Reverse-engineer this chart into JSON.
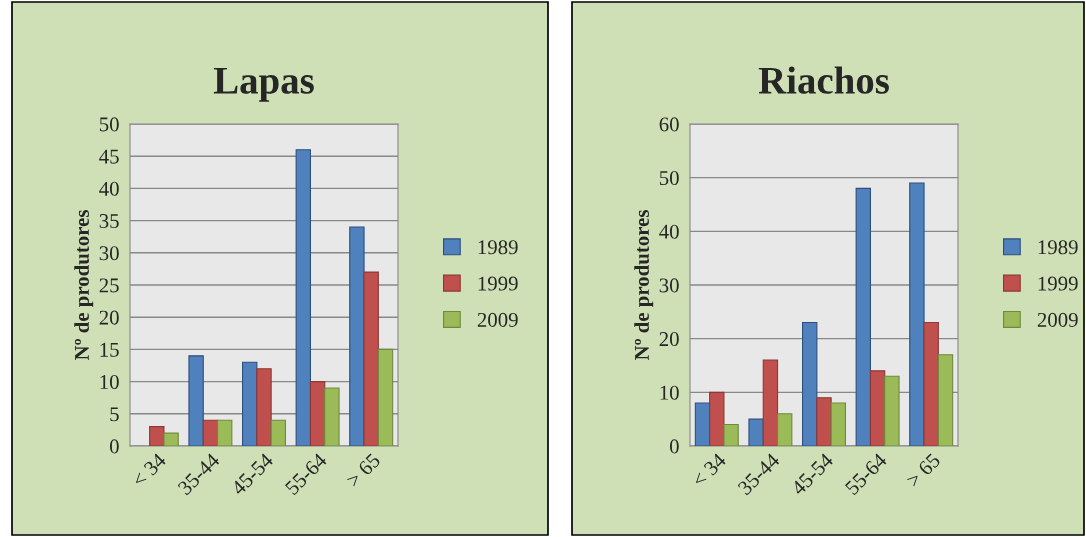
{
  "chart_data": [
    {
      "type": "bar",
      "title": "Lapas",
      "ylabel": "Nº de produtores",
      "categories": [
        "< 34",
        "35-44",
        "45-54",
        "55-64",
        "> 65"
      ],
      "series": [
        {
          "name": "1989",
          "color": "#4f81bd",
          "values": [
            null,
            14,
            13,
            46,
            34
          ]
        },
        {
          "name": "1999",
          "color": "#c0504d",
          "values": [
            3,
            4,
            12,
            10,
            27
          ]
        },
        {
          "name": "2009",
          "color": "#9bbb59",
          "values": [
            2,
            4,
            4,
            9,
            15
          ]
        }
      ],
      "ylim": [
        0,
        50
      ],
      "yticks": [
        0,
        5,
        10,
        15,
        20,
        25,
        30,
        35,
        40,
        45,
        50
      ],
      "grid": "y",
      "legend": "right"
    },
    {
      "type": "bar",
      "title": "Riachos",
      "ylabel": "Nº de produtores",
      "categories": [
        "< 34",
        "35-44",
        "45-54",
        "55-64",
        "> 65"
      ],
      "series": [
        {
          "name": "1989",
          "color": "#4f81bd",
          "values": [
            8,
            5,
            23,
            48,
            49
          ]
        },
        {
          "name": "1999",
          "color": "#c0504d",
          "values": [
            10,
            16,
            9,
            14,
            23
          ]
        },
        {
          "name": "2009",
          "color": "#9bbb59",
          "values": [
            4,
            6,
            8,
            13,
            17
          ]
        }
      ],
      "ylim": [
        0,
        60
      ],
      "yticks": [
        0,
        10,
        20,
        30,
        40,
        50,
        60
      ],
      "grid": "y",
      "legend": "right"
    }
  ]
}
